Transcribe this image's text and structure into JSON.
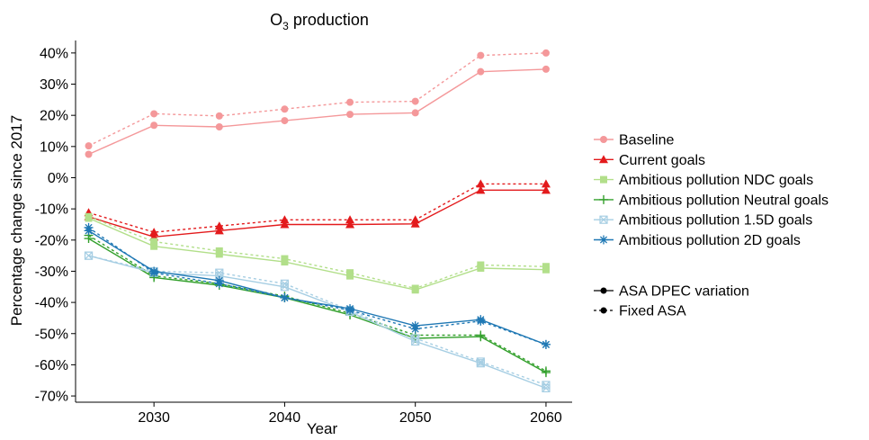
{
  "chart_data": {
    "type": "line",
    "title": "O3 production",
    "title_main": "O",
    "title_sub": "3",
    "title_rest": " production",
    "xlabel": "Year",
    "ylabel": "Percentage change since 2017",
    "xlim": [
      2024,
      2062
    ],
    "ylim": [
      -72,
      44
    ],
    "x_ticks": [
      2030,
      2040,
      2050,
      2060
    ],
    "x_tick_labels": [
      "2030",
      "2040",
      "2050",
      "2060"
    ],
    "y_ticks": [
      40,
      30,
      20,
      10,
      0,
      -10,
      -20,
      -30,
      -40,
      -50,
      -60,
      -70
    ],
    "y_tick_labels": [
      "40%",
      "30%",
      "20%",
      "10%",
      "0%",
      "-10%",
      "-20%",
      "-30%",
      "-40%",
      "-50%",
      "-60%",
      "-70%"
    ],
    "grid": false,
    "legend_position": "right",
    "x": [
      2025,
      2030,
      2035,
      2040,
      2045,
      2050,
      2055,
      2060
    ],
    "series": [
      {
        "name": "Baseline",
        "color": "#f4989a",
        "marker": "circle",
        "solid": [
          7.5,
          16.8,
          16.3,
          18.3,
          20.3,
          20.8,
          34.0,
          34.8
        ],
        "dashed": [
          10.2,
          20.5,
          19.8,
          22.0,
          24.2,
          24.5,
          39.2,
          40.0
        ]
      },
      {
        "name": "Current goals",
        "color": "#e31a1c",
        "marker": "triangle",
        "solid": [
          -12.5,
          -19.0,
          -17.0,
          -15.0,
          -15.0,
          -14.8,
          -4.0,
          -4.0
        ],
        "dashed": [
          -11.2,
          -17.5,
          -15.5,
          -13.5,
          -13.5,
          -13.5,
          -2.0,
          -2.0
        ]
      },
      {
        "name": "Ambitious pollution NDC goals",
        "color": "#b2df8a",
        "marker": "square",
        "solid": [
          -13.0,
          -22.0,
          -24.5,
          -27.0,
          -31.5,
          -36.0,
          -29.0,
          -29.5
        ],
        "dashed": [
          -12.5,
          -20.5,
          -23.5,
          -26.0,
          -30.5,
          -35.5,
          -28.0,
          -28.5
        ]
      },
      {
        "name": "Ambitious pollution Neutral goals",
        "color": "#33a02c",
        "marker": "plus",
        "solid": [
          -19.5,
          -32.0,
          -34.5,
          -38.5,
          -44.0,
          -51.5,
          -51.0,
          -62.5
        ],
        "dashed": [
          -18.5,
          -31.5,
          -34.0,
          -38.0,
          -43.5,
          -50.5,
          -50.5,
          -62.0
        ]
      },
      {
        "name": "Ambitious pollution 1.5D goals",
        "color": "#a6cee3",
        "marker": "square-cross",
        "solid": [
          -25.0,
          -30.5,
          -31.5,
          -35.0,
          -43.0,
          -52.5,
          -59.5,
          -67.5
        ],
        "dashed": [
          -25.0,
          -30.0,
          -30.5,
          -34.0,
          -42.5,
          -51.5,
          -59.0,
          -66.5
        ]
      },
      {
        "name": "Ambitious pollution 2D goals",
        "color": "#1f78b4",
        "marker": "asterisk",
        "solid": [
          -17.0,
          -30.0,
          -33.0,
          -38.5,
          -42.0,
          -47.5,
          -45.5,
          -53.5
        ],
        "dashed": [
          -16.0,
          -30.5,
          -34.0,
          -38.5,
          -42.5,
          -48.5,
          -46.0,
          -53.5
        ]
      }
    ],
    "linetype_legend": [
      {
        "label": "ASA DPEC variation",
        "style": "solid"
      },
      {
        "label": "Fixed ASA",
        "style": "dashed"
      }
    ]
  }
}
